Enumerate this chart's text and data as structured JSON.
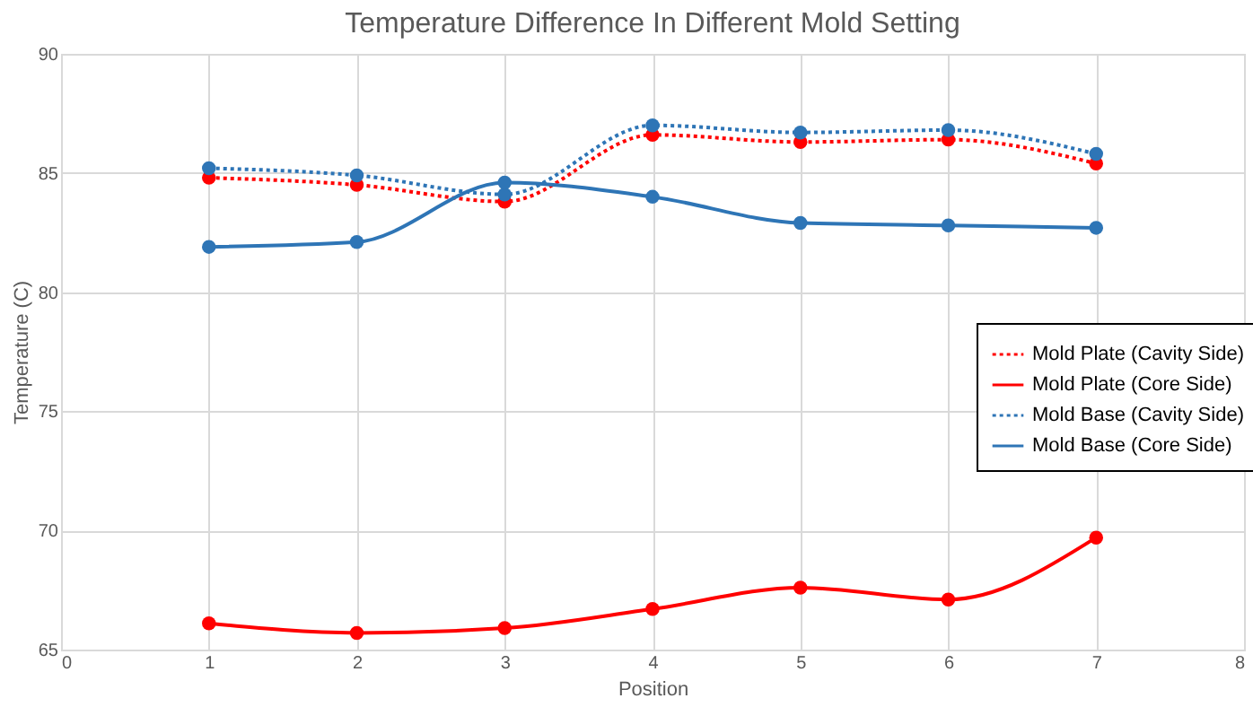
{
  "chart_data": {
    "type": "line",
    "title": "Temperature Difference In Different Mold Setting",
    "xlabel": "Position",
    "ylabel": "Temperature (C)",
    "x": [
      1,
      2,
      3,
      4,
      5,
      6,
      7
    ],
    "series": [
      {
        "name": "Mold Plate (Cavity Side)",
        "color": "#ff0000",
        "line_style": "dotted",
        "values": [
          84.8,
          84.5,
          83.8,
          86.6,
          86.3,
          86.4,
          85.4
        ]
      },
      {
        "name": "Mold Plate (Core Side)",
        "color": "#ff0000",
        "line_style": "solid",
        "values": [
          66.1,
          65.7,
          65.9,
          66.7,
          67.6,
          67.1,
          69.7
        ]
      },
      {
        "name": "Mold Base (Cavity Side)",
        "color": "#2e75b6",
        "line_style": "dotted",
        "values": [
          85.2,
          84.9,
          84.1,
          87.0,
          86.7,
          86.8,
          85.8
        ]
      },
      {
        "name": "Mold Base (Core Side)",
        "color": "#2e75b6",
        "line_style": "solid",
        "values": [
          81.9,
          82.1,
          84.6,
          84.0,
          82.9,
          82.8,
          82.7
        ]
      }
    ],
    "xlim": [
      0,
      8
    ],
    "xticks": [
      0,
      1,
      2,
      3,
      4,
      5,
      6,
      7,
      8
    ],
    "ylim": [
      65,
      90
    ],
    "yticks": [
      65,
      70,
      75,
      80,
      85,
      90
    ],
    "grid": true,
    "legend": "right",
    "marker": "circle"
  }
}
